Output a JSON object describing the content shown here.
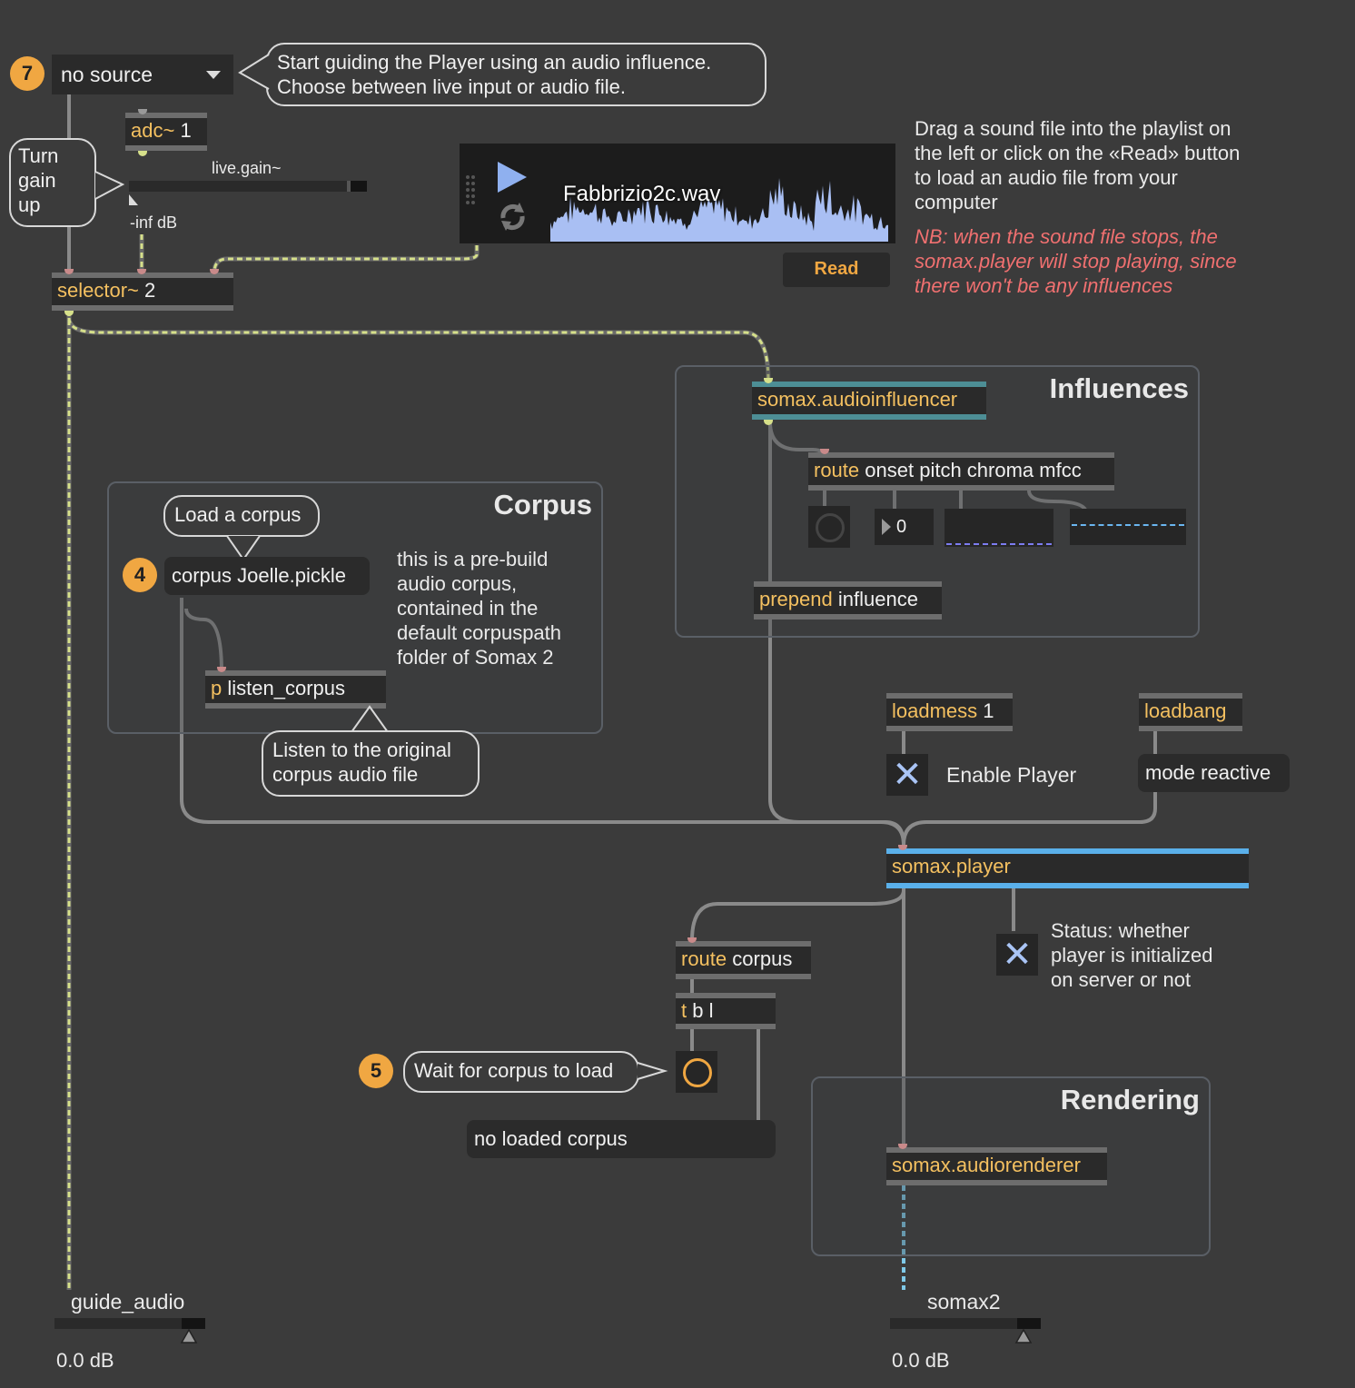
{
  "source_menu": {
    "badge": "7",
    "value": "no source"
  },
  "source_bubble": {
    "line1": "Start guiding the Player using an audio influence.",
    "line2": "Choose between live input or audio file."
  },
  "adc": {
    "cls": "adc~",
    "arg": "1"
  },
  "gain": {
    "label": "live.gain~",
    "value": "-inf dB"
  },
  "gain_bubble": {
    "l1": "Turn",
    "l2": "gain",
    "l3": "up"
  },
  "player_file": {
    "filename": "Fabbrizio2c.wav",
    "read_label": "Read"
  },
  "drag_note": {
    "l1": "Drag a sound file into the playlist on",
    "l2": "the left or click on the «Read» button",
    "l3": "to load an audio file from your",
    "l4": "computer"
  },
  "nb_note": {
    "l1": "NB: when the sound file stops, the",
    "l2": "somax.player will stop playing, since",
    "l3": "there won't be any influences"
  },
  "selector": {
    "cls": "selector~",
    "arg": "2"
  },
  "influences": {
    "title": "Influences",
    "audioinfluencer": "somax.audioinfluencer",
    "route_cls": "route",
    "route_args": "onset pitch chroma mfcc",
    "number": "0",
    "prepend_cls": "prepend",
    "prepend_args": "influence"
  },
  "corpus": {
    "title": "Corpus",
    "bubble": "Load a corpus",
    "badge": "4",
    "message": "corpus Joelle.pickle",
    "note": [
      "this is a pre-build",
      "audio corpus,",
      "contained in the",
      "default corpuspath",
      "folder of Somax 2"
    ],
    "p_cls": "p",
    "p_args": "listen_corpus",
    "listen_bubble": [
      "Listen to the original",
      "corpus audio file"
    ]
  },
  "loadmess": {
    "cls": "loadmess",
    "arg": "1"
  },
  "loadbang": {
    "cls": "loadbang"
  },
  "enable_label": "Enable Player",
  "mode_message": "mode reactive",
  "somax_player": "somax.player",
  "status_note": [
    "Status: whether",
    "player is initialized",
    "on server or not"
  ],
  "route_corpus": {
    "cls": "route",
    "args": "corpus"
  },
  "tbl": {
    "cls": "t",
    "args": "b l"
  },
  "wait": {
    "badge": "5",
    "bubble": "Wait for corpus to load"
  },
  "no_corpus": "no loaded corpus",
  "rendering": {
    "title": "Rendering",
    "renderer": "somax.audiorenderer"
  },
  "out_left": {
    "label": "guide_audio",
    "value": "0.0 dB"
  },
  "out_right": {
    "label": "somax2",
    "value": "0.0 dB"
  },
  "colors": {
    "accent": "#f0a742",
    "object_name": "#f4c060",
    "waveform": "#a9bff3",
    "signal_wire": "#d6e08a",
    "red_note": "#f07070"
  }
}
